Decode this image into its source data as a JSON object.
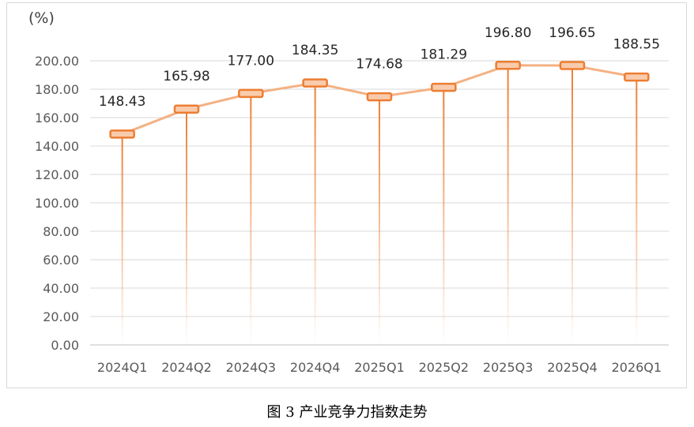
{
  "caption": "图 3  产业竞争力指数走势",
  "chart_data": {
    "type": "line",
    "unit_label": "(%)",
    "categories": [
      "2024Q1",
      "2024Q2",
      "2024Q3",
      "2024Q4",
      "2025Q1",
      "2025Q2",
      "2025Q3",
      "2025Q4",
      "2026Q1"
    ],
    "values": [
      148.43,
      165.98,
      177.0,
      184.35,
      174.68,
      181.29,
      196.8,
      196.65,
      188.55
    ],
    "value_labels": [
      "148.43",
      "165.98",
      "177.00",
      "184.35",
      "174.68",
      "181.29",
      "196.80",
      "196.65",
      "188.55"
    ],
    "y_ticks": [
      "0.00",
      "20.00",
      "40.00",
      "60.00",
      "80.00",
      "100.00",
      "120.00",
      "140.00",
      "160.00",
      "180.00",
      "200.00"
    ],
    "ylim": [
      0,
      200
    ],
    "grid": true,
    "colors": {
      "line": "#f4b183",
      "marker": "#ed7d31",
      "marker_fill": "#f8cbad",
      "drop_line": "#ed7d31",
      "grid": "#d9d9d9"
    }
  }
}
